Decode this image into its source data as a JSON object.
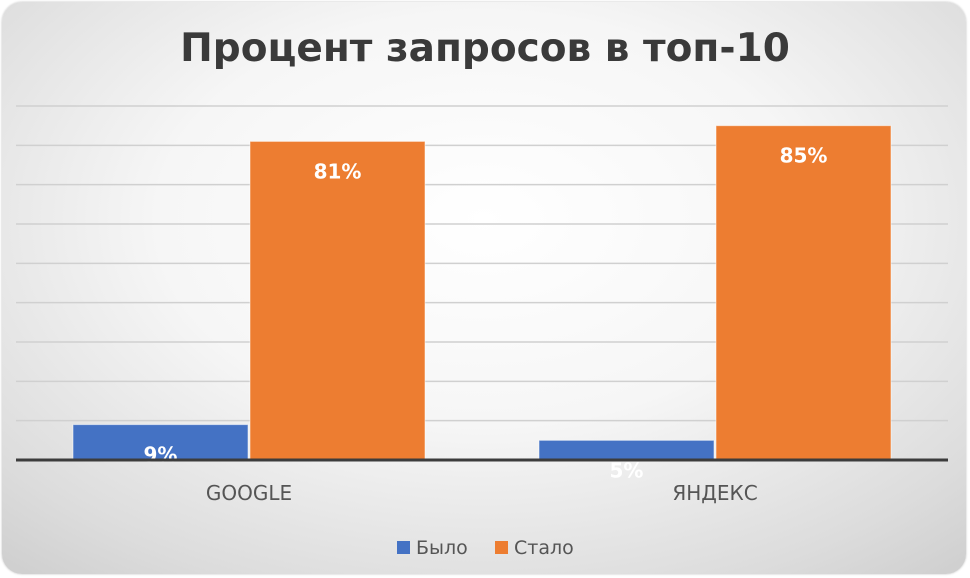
{
  "chart_data": {
    "type": "bar",
    "title": "Процент запросов в топ-10",
    "categories": [
      "GOOGLE",
      "ЯНДЕКС"
    ],
    "series": [
      {
        "name": "Было",
        "values": [
          9,
          5
        ],
        "labels": [
          "9%",
          "5%"
        ]
      },
      {
        "name": "Стало",
        "values": [
          81,
          85
        ],
        "labels": [
          "81%",
          "85%"
        ]
      }
    ],
    "ylim": [
      0,
      90
    ],
    "grid": true,
    "legend": "bottom",
    "colors": {
      "Было": "#4472c4",
      "Стало": "#ed7d31"
    }
  }
}
